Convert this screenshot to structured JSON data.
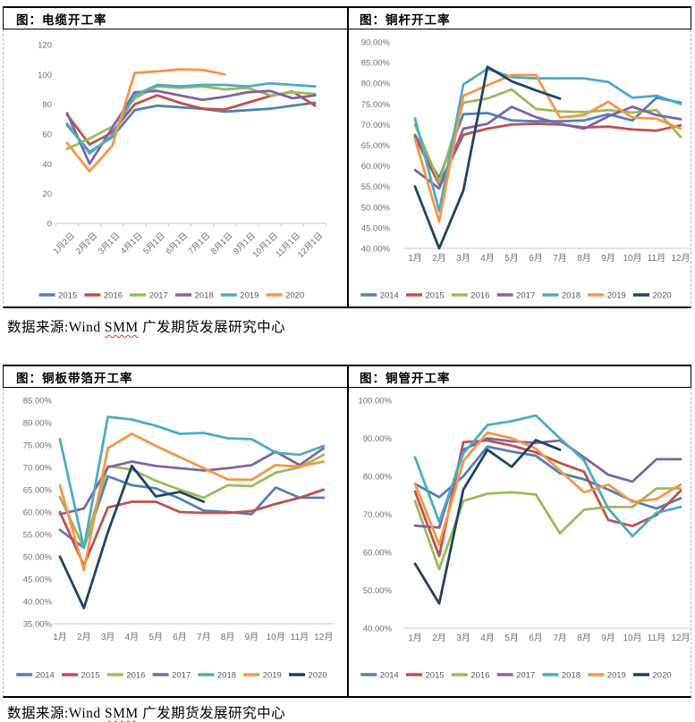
{
  "palette": {
    "blue": "#4F81BD",
    "red": "#C0504D",
    "green": "#9BBB59",
    "purple": "#8064A2",
    "cyan": "#4BACC6",
    "orange": "#F79646",
    "navy": "#1F4467"
  },
  "axis_colors": {
    "tick_label": "#6f6f6f",
    "legend_label": "#595959",
    "axis_line": "#c9c9c9"
  },
  "source_note": {
    "prefix": "数据来源:Wind ",
    "brand": "SMM",
    "suffix": " 广发期货发展研究中心"
  },
  "chart_data": [
    {
      "type": "line",
      "title": "图：电缆开工率",
      "ylabel": "",
      "xlabel": "",
      "ylim": [
        0,
        120
      ],
      "ytick_step": 20,
      "y_format": "int",
      "grid": false,
      "legend_position": "bottom",
      "categories": [
        "1月2日",
        "2月2日",
        "3月1日",
        "4月1日",
        "5月1日",
        "6月1日",
        "7月1日",
        "8月1日",
        "9月1日",
        "10月1日",
        "11月1日",
        "12月1日"
      ],
      "series": [
        {
          "name": "2015",
          "color": "blue",
          "values": [
            66,
            48,
            58,
            76,
            79,
            78,
            77,
            75,
            76,
            77,
            79,
            81
          ]
        },
        {
          "name": "2016",
          "color": "red",
          "values": [
            73,
            53,
            61,
            80,
            86,
            81,
            77,
            76.5,
            81,
            85.5,
            88.5,
            79
          ]
        },
        {
          "name": "2017",
          "color": "green",
          "values": [
            50,
            57,
            65,
            84,
            92,
            91,
            92,
            90,
            91,
            86,
            88,
            87
          ]
        },
        {
          "name": "2018",
          "color": "purple",
          "values": [
            74,
            40,
            64,
            88,
            89,
            86,
            83,
            85,
            88,
            89,
            84,
            86
          ]
        },
        {
          "name": "2019",
          "color": "cyan",
          "values": [
            67,
            47,
            59,
            86,
            93,
            92,
            93,
            93,
            92,
            94,
            93,
            92
          ]
        },
        {
          "name": "2020",
          "color": "orange",
          "values": [
            54,
            35,
            52,
            101,
            102,
            103.5,
            103,
            100
          ]
        }
      ]
    },
    {
      "type": "line",
      "title": "图：铜杆开工率",
      "ylabel": "",
      "xlabel": "",
      "ylim": [
        40,
        90
      ],
      "ytick_step": 5,
      "y_format": "pct",
      "grid": false,
      "legend_position": "bottom",
      "categories": [
        "1月",
        "2月",
        "3月",
        "4月",
        "5月",
        "6月",
        "7月",
        "8月",
        "9月",
        "10月",
        "11月",
        "12月"
      ],
      "series": [
        {
          "name": "2014",
          "color": "blue",
          "values": [
            67.5,
            57,
            72.5,
            72.8,
            71,
            70.8,
            70.8,
            71,
            72.5,
            71,
            76.5,
            75.3
          ]
        },
        {
          "name": "2015",
          "color": "red",
          "values": [
            67,
            55.5,
            67.5,
            69,
            70,
            70.2,
            70,
            69.3,
            69.5,
            68.8,
            68.5,
            69.8
          ]
        },
        {
          "name": "2016",
          "color": "green",
          "values": [
            70,
            56,
            75.3,
            76.3,
            78.5,
            73.8,
            73.2,
            73,
            73.5,
            72.9,
            73.5,
            67
          ]
        },
        {
          "name": "2017",
          "color": "purple",
          "values": [
            59,
            54.5,
            69,
            70.2,
            74.3,
            71.8,
            70.2,
            69,
            72,
            74.3,
            72.3,
            71.3
          ]
        },
        {
          "name": "2018",
          "color": "cyan",
          "values": [
            71.5,
            49,
            79.7,
            83.5,
            81.5,
            81.2,
            81.2,
            81.2,
            80.3,
            76.5,
            77,
            75
          ]
        },
        {
          "name": "2019",
          "color": "orange",
          "values": [
            66.5,
            46.5,
            77,
            79.5,
            82,
            82,
            71.7,
            72.3,
            75.5,
            71.7,
            71.4,
            69
          ]
        },
        {
          "name": "2020",
          "color": "navy",
          "values": [
            55,
            40,
            54,
            84,
            80.5,
            78.3,
            76.3
          ]
        }
      ]
    },
    {
      "type": "line",
      "title": "图：铜板带箔开工率",
      "ylabel": "",
      "xlabel": "",
      "ylim": [
        35,
        85
      ],
      "ytick_step": 5,
      "y_format": "pct",
      "grid": false,
      "legend_position": "bottom",
      "categories": [
        "1月",
        "2月",
        "3月",
        "4月",
        "5月",
        "6月",
        "7月",
        "8月",
        "9月",
        "10月",
        "11月",
        "12月"
      ],
      "series": [
        {
          "name": "2014",
          "color": "blue",
          "values": [
            56,
            52,
            68,
            66,
            65.3,
            63,
            60.3,
            60,
            59.5,
            65.5,
            63.2,
            63.2
          ]
        },
        {
          "name": "2015",
          "color": "red",
          "values": [
            60,
            48,
            61,
            62.3,
            62.3,
            60,
            59.8,
            59.8,
            60.2,
            61.8,
            63.2,
            65
          ]
        },
        {
          "name": "2016",
          "color": "green",
          "values": [
            63.3,
            52,
            70.3,
            69.5,
            67,
            65,
            63.2,
            66,
            65.8,
            68.8,
            70,
            72.8
          ]
        },
        {
          "name": "2017",
          "color": "purple",
          "values": [
            59.5,
            60.8,
            70,
            71.3,
            70.3,
            69.8,
            69.3,
            69.8,
            70.5,
            73.5,
            70.5,
            74.3
          ]
        },
        {
          "name": "2018",
          "color": "cyan",
          "values": [
            76.3,
            52,
            81.3,
            80.7,
            79.3,
            77.5,
            77.7,
            76.5,
            76.3,
            73.3,
            72.8,
            74.8
          ]
        },
        {
          "name": "2019",
          "color": "orange",
          "values": [
            66,
            47,
            74.3,
            77.5,
            74.8,
            72.3,
            69.8,
            67.3,
            67.2,
            70.5,
            70.2,
            71.3
          ]
        },
        {
          "name": "2020",
          "color": "navy",
          "values": [
            50,
            38.5,
            55.5,
            70.3,
            63.5,
            64.5,
            62.3
          ]
        }
      ]
    },
    {
      "type": "line",
      "title": "图：铜管开工率",
      "ylabel": "",
      "xlabel": "",
      "ylim": [
        40,
        100
      ],
      "ytick_step": 10,
      "y_format": "pct",
      "grid": false,
      "legend_position": "bottom",
      "categories": [
        "1月",
        "2月",
        "3月",
        "4月",
        "5月",
        "6月",
        "7月",
        "8月",
        "9月",
        "10月",
        "11月",
        "12月"
      ],
      "series": [
        {
          "name": "2014",
          "color": "blue",
          "values": [
            78,
            74.5,
            80,
            87.8,
            86.5,
            85.4,
            80.8,
            79.2,
            76.5,
            73.5,
            71.5,
            74.2
          ]
        },
        {
          "name": "2015",
          "color": "red",
          "values": [
            76,
            59,
            89,
            89.4,
            88.1,
            86.3,
            83.5,
            81.2,
            68.5,
            66.9,
            69.8,
            76.2
          ]
        },
        {
          "name": "2016",
          "color": "green",
          "values": [
            73.5,
            55.5,
            73.5,
            75.4,
            75.8,
            75.2,
            65,
            71.2,
            71.9,
            71.9,
            76.8,
            76.8
          ]
        },
        {
          "name": "2017",
          "color": "purple",
          "values": [
            67,
            66.5,
            87,
            90,
            89.2,
            88.8,
            89.4,
            85,
            80.4,
            78.6,
            84.5,
            84.5
          ]
        },
        {
          "name": "2018",
          "color": "cyan",
          "values": [
            85,
            68,
            86,
            93.5,
            94.5,
            96,
            90,
            84.2,
            71.5,
            64.2,
            70.4,
            71.9
          ]
        },
        {
          "name": "2019",
          "color": "orange",
          "values": [
            78,
            62,
            84,
            91.5,
            90,
            87.3,
            81.5,
            75.8,
            77.8,
            73.2,
            74,
            77.8
          ]
        },
        {
          "name": "2020",
          "color": "navy",
          "values": [
            57,
            46.5,
            76.5,
            87,
            82.5,
            89.5,
            87
          ]
        }
      ]
    }
  ]
}
